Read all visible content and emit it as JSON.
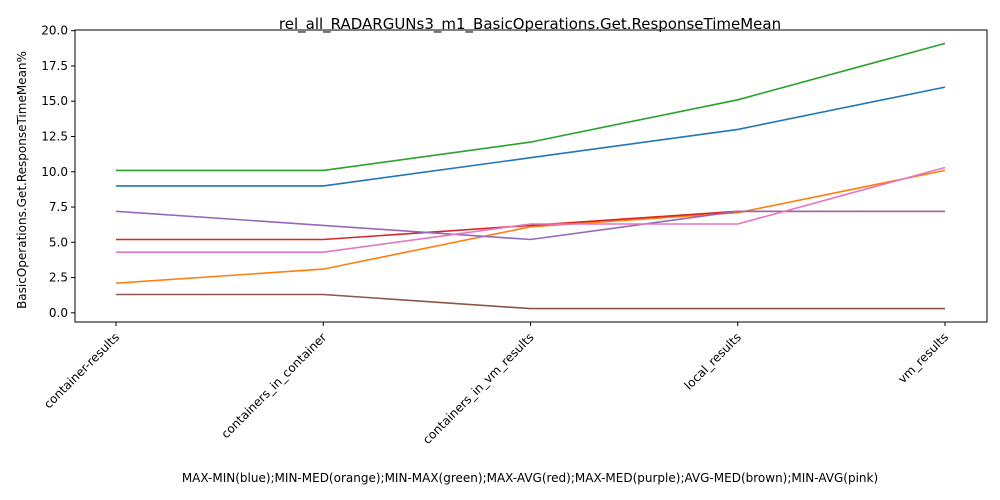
{
  "chart_data": {
    "type": "line",
    "title": "rel_all_RADARGUNs3_m1_BasicOperations.Get.ResponseTimeMean",
    "xlabel": "MAX-MIN(blue);MIN-MED(orange);MIN-MAX(green);MAX-AVG(red);MAX-MED(purple);AVG-MED(brown);MIN-AVG(pink)",
    "ylabel": "BasicOperations.Get.ResponseTimeMean%",
    "categories": [
      "container-results",
      "containers_in_container",
      "containers_in_vm_results",
      "local_results",
      "vm_results"
    ],
    "ylim": [
      -0.65,
      20.05
    ],
    "yticks": [
      "0.0",
      "2.5",
      "5.0",
      "7.5",
      "10.0",
      "12.5",
      "15.0",
      "17.5",
      "20.0"
    ],
    "grid": false,
    "series": [
      {
        "color": "#1f77b4",
        "values": [
          9.0,
          9.0,
          11.0,
          13.0,
          16.0
        ]
      },
      {
        "color": "#ff7f0e",
        "values": [
          2.1,
          3.1,
          6.1,
          7.1,
          10.1
        ]
      },
      {
        "color": "#2ca02c",
        "values": [
          10.1,
          10.1,
          12.1,
          15.1,
          19.1
        ]
      },
      {
        "color": "#d62728",
        "values": [
          5.2,
          5.2,
          6.2,
          7.2,
          7.2
        ]
      },
      {
        "color": "#9467bd",
        "values": [
          7.2,
          6.2,
          5.2,
          7.2,
          7.2
        ]
      },
      {
        "color": "#8c564b",
        "values": [
          1.3,
          1.3,
          0.3,
          0.3,
          0.3
        ]
      },
      {
        "color": "#e377c2",
        "values": [
          4.3,
          4.3,
          6.3,
          6.3,
          10.3
        ]
      }
    ]
  }
}
